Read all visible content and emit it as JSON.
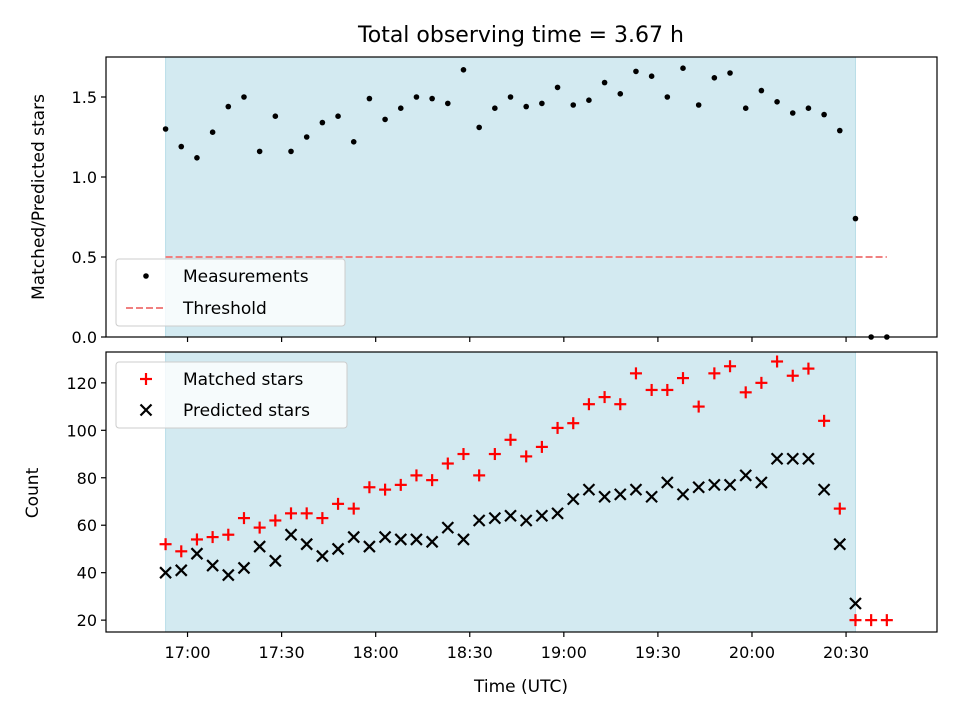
{
  "chart_data": [
    {
      "type": "scatter",
      "title": "Total observing time = 3.67 h",
      "ylabel": "Matched/Predicted stars",
      "ylim": [
        0,
        1.75
      ],
      "yticks": [
        0.0,
        0.5,
        1.0,
        1.5
      ],
      "ytick_labels": [
        "0.0",
        "0.5",
        "1.0",
        "1.5"
      ],
      "x_minutes": [
        "16:53",
        "16:58",
        "17:03",
        "17:08",
        "17:13",
        "17:18",
        "17:23",
        "17:28",
        "17:33",
        "17:38",
        "17:43",
        "17:48",
        "17:53",
        "17:58",
        "18:03",
        "18:08",
        "18:13",
        "18:18",
        "18:23",
        "18:28",
        "18:33",
        "18:38",
        "18:43",
        "18:48",
        "18:53",
        "18:58",
        "19:03",
        "19:08",
        "19:13",
        "19:18",
        "19:23",
        "19:28",
        "19:33",
        "19:38",
        "19:43",
        "19:48",
        "19:53",
        "19:58",
        "20:03",
        "20:08",
        "20:13",
        "20:18",
        "20:23",
        "20:28",
        "20:33",
        "20:38",
        "20:43"
      ],
      "series": [
        {
          "name": "Measurements",
          "marker": "dot",
          "color": "#000000",
          "values": [
            1.3,
            1.19,
            1.12,
            1.28,
            1.44,
            1.5,
            1.16,
            1.38,
            1.16,
            1.25,
            1.34,
            1.38,
            1.22,
            1.49,
            1.36,
            1.43,
            1.5,
            1.49,
            1.46,
            1.67,
            1.31,
            1.43,
            1.5,
            1.44,
            1.46,
            1.56,
            1.45,
            1.48,
            1.59,
            1.52,
            1.66,
            1.63,
            1.5,
            1.68,
            1.45,
            1.62,
            1.65,
            1.43,
            1.54,
            1.47,
            1.4,
            1.43,
            1.39,
            1.29,
            0.74,
            0.0,
            0.0
          ]
        },
        {
          "name": "Threshold",
          "marker": "dashed-line",
          "color": "#f08080",
          "x_range": [
            "16:53",
            "20:43"
          ],
          "value": 0.5
        }
      ],
      "legend": "lower-left",
      "shaded_range": [
        "16:53",
        "20:33"
      ],
      "shade_color": "#d3eaf1"
    },
    {
      "type": "scatter",
      "xlabel": "Time (UTC)",
      "ylabel": "Count",
      "ylim": [
        15,
        133
      ],
      "yticks": [
        20,
        40,
        60,
        80,
        100,
        120
      ],
      "ytick_labels": [
        "20",
        "40",
        "60",
        "80",
        "100",
        "120"
      ],
      "xticks": [
        "17:00",
        "17:30",
        "18:00",
        "18:30",
        "19:00",
        "19:30",
        "20:00",
        "20:30"
      ],
      "xlim": [
        "16:34",
        "20:59"
      ],
      "series": [
        {
          "name": "Matched stars",
          "marker": "plus",
          "color": "#ff0000",
          "values": [
            52,
            49,
            54,
            55,
            56,
            63,
            59,
            62,
            65,
            65,
            63,
            69,
            67,
            76,
            75,
            77,
            81,
            79,
            86,
            90,
            81,
            90,
            96,
            89,
            93,
            101,
            103,
            111,
            114,
            111,
            124,
            117,
            117,
            122,
            110,
            124,
            127,
            116,
            120,
            129,
            123,
            126,
            104,
            67,
            20,
            20,
            20
          ],
          "x_offset_index": 0
        },
        {
          "name": "Predicted stars",
          "marker": "x",
          "color": "#000000",
          "values": [
            40,
            41,
            48,
            43,
            39,
            42,
            51,
            45,
            56,
            52,
            47,
            50,
            55,
            51,
            55,
            54,
            54,
            53,
            59,
            54,
            62,
            63,
            64,
            62,
            64,
            65,
            71,
            75,
            72,
            73,
            75,
            72,
            78,
            73,
            76,
            77,
            77,
            81,
            78,
            88,
            88,
            88,
            75,
            52,
            27
          ]
        }
      ],
      "legend": "upper-left",
      "shaded_range": [
        "16:53",
        "20:33"
      ],
      "shade_color": "#d3eaf1"
    }
  ]
}
